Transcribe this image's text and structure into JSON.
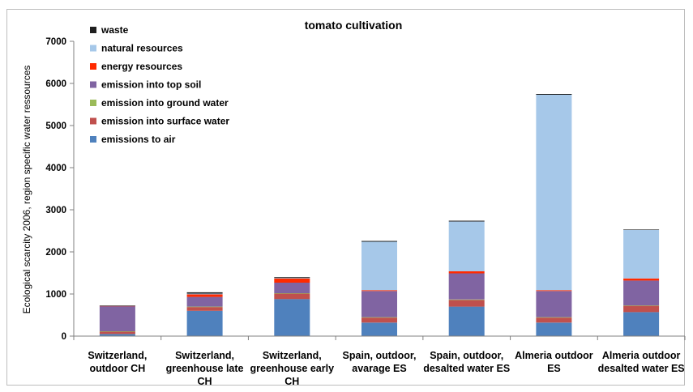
{
  "chart_data": {
    "type": "bar",
    "stacked": true,
    "title": "tomato cultivation",
    "ylabel": "Ecological scarcity 2006, region specific water ressources",
    "xlabel": "",
    "ylim": [
      0,
      7000
    ],
    "yticks": [
      0,
      1000,
      2000,
      3000,
      4000,
      5000,
      6000,
      7000
    ],
    "grid": false,
    "legend_position": "top-left",
    "categories": [
      [
        "Switzerland,",
        "outdoor CH"
      ],
      [
        "Switzerland,",
        "greenhouse late",
        "CH"
      ],
      [
        "Switzerland,",
        "greenhouse early",
        "CH"
      ],
      [
        "Spain, outdoor,",
        "avarage ES"
      ],
      [
        "Spain, outdoor,",
        "desalted water ES"
      ],
      [
        "Almeria outdoor",
        "ES"
      ],
      [
        "Almeria outdoor",
        "desalted water ES"
      ]
    ],
    "series": [
      {
        "name": "emissions to air",
        "color": "#4f81bd",
        "values": [
          50,
          600,
          880,
          320,
          700,
          320,
          570
        ]
      },
      {
        "name": "emission into surface water",
        "color": "#c0504d",
        "values": [
          60,
          90,
          130,
          120,
          160,
          120,
          150
        ]
      },
      {
        "name": "emission into ground water",
        "color": "#9bbb59",
        "values": [
          5,
          10,
          10,
          10,
          10,
          10,
          10
        ]
      },
      {
        "name": "emission into top soil",
        "color": "#8064a2",
        "values": [
          600,
          230,
          250,
          620,
          620,
          620,
          590
        ]
      },
      {
        "name": "energy resources",
        "color": "#ff2a00",
        "values": [
          5,
          60,
          100,
          20,
          50,
          20,
          50
        ]
      },
      {
        "name": "natural resources",
        "color": "#a6c8e9",
        "values": [
          0,
          20,
          10,
          1150,
          1180,
          4640,
          1150
        ]
      },
      {
        "name": "waste",
        "color": "#1f1f1f",
        "values": [
          5,
          30,
          20,
          20,
          20,
          20,
          10
        ]
      }
    ]
  }
}
